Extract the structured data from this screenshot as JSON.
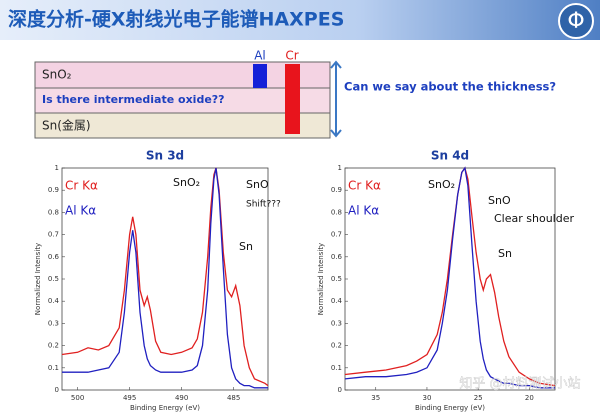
{
  "header": {
    "title": "深度分析-硬X射线光电子能谱HAXPES",
    "logo": "Φ"
  },
  "diagram": {
    "layers": [
      "SnO₂",
      "Is there intermediate oxide??",
      "Sn(金属)"
    ],
    "sources": [
      "Al",
      "Cr"
    ],
    "question": "Can we say about the thickness?"
  },
  "chart_data": [
    {
      "type": "line",
      "title": "Sn 3d",
      "x_label": "Binding Energy (eV)",
      "y_label": "Normalized Intensity",
      "x": [
        501.5,
        500,
        499,
        498,
        497,
        496,
        495.5,
        495,
        494.7,
        494.4,
        494,
        493.6,
        493.3,
        493,
        492.5,
        492,
        491,
        490,
        489,
        488.5,
        488,
        487.5,
        487.2,
        486.9,
        486.7,
        486.4,
        486,
        485.6,
        485.2,
        484.8,
        484.4,
        484,
        483.5,
        483,
        482,
        481.7
      ],
      "series": [
        {
          "name": "Cr Kα",
          "color": "#e02020",
          "values": [
            0.16,
            0.17,
            0.19,
            0.18,
            0.2,
            0.28,
            0.45,
            0.7,
            0.78,
            0.7,
            0.45,
            0.38,
            0.42,
            0.36,
            0.22,
            0.17,
            0.16,
            0.17,
            0.19,
            0.23,
            0.35,
            0.6,
            0.82,
            0.97,
            1,
            0.9,
            0.62,
            0.45,
            0.42,
            0.47,
            0.38,
            0.2,
            0.1,
            0.05,
            0.03,
            0.02
          ]
        },
        {
          "name": "Al Kα",
          "color": "#2020c0",
          "values": [
            0.08,
            0.08,
            0.08,
            0.09,
            0.1,
            0.17,
            0.35,
            0.62,
            0.72,
            0.62,
            0.35,
            0.2,
            0.14,
            0.11,
            0.09,
            0.08,
            0.08,
            0.08,
            0.09,
            0.11,
            0.2,
            0.45,
            0.75,
            0.95,
            1,
            0.88,
            0.55,
            0.25,
            0.1,
            0.05,
            0.03,
            0.02,
            0.02,
            0.01,
            0.01,
            0.01
          ]
        }
      ],
      "xlim": [
        501.5,
        481.7
      ],
      "xticks": [
        500,
        495,
        490,
        485
      ],
      "ylim": [
        0,
        1
      ],
      "yticks": [
        0,
        0.1,
        0.2,
        0.3,
        0.4,
        0.5,
        0.6,
        0.7,
        0.8,
        0.9,
        1
      ],
      "annotations": [
        "SnO₂",
        "SnO",
        "Shift???",
        "Sn"
      ]
    },
    {
      "type": "line",
      "title": "Sn 4d",
      "x_label": "Binding Energy (eV)",
      "y_label": "Normalized Intensity",
      "x": [
        38,
        36,
        34,
        32,
        31,
        30,
        29,
        28.5,
        28,
        27.5,
        27,
        26.6,
        26.3,
        26,
        25.6,
        25.2,
        24.8,
        24.5,
        24.2,
        23.8,
        23.4,
        23,
        22.5,
        22,
        21,
        20,
        19,
        17.5
      ],
      "series": [
        {
          "name": "Cr Kα",
          "color": "#e02020",
          "values": [
            0.07,
            0.08,
            0.09,
            0.11,
            0.13,
            0.16,
            0.25,
            0.35,
            0.5,
            0.7,
            0.88,
            0.98,
            1,
            0.95,
            0.78,
            0.62,
            0.5,
            0.45,
            0.5,
            0.52,
            0.44,
            0.33,
            0.22,
            0.15,
            0.08,
            0.05,
            0.03,
            0.02
          ]
        },
        {
          "name": "Al Kα",
          "color": "#2020c0",
          "values": [
            0.05,
            0.06,
            0.06,
            0.07,
            0.08,
            0.1,
            0.18,
            0.3,
            0.45,
            0.68,
            0.88,
            0.98,
            1,
            0.92,
            0.65,
            0.4,
            0.22,
            0.14,
            0.09,
            0.06,
            0.05,
            0.04,
            0.03,
            0.03,
            0.02,
            0.02,
            0.01,
            0.01
          ]
        }
      ],
      "xlim": [
        38,
        17.5
      ],
      "xticks": [
        35,
        30,
        25,
        20
      ],
      "ylim": [
        0,
        1
      ],
      "yticks": [
        0,
        0.1,
        0.2,
        0.3,
        0.4,
        0.5,
        0.6,
        0.7,
        0.8,
        0.9,
        1
      ],
      "annotations": [
        "SnO₂",
        "SnO",
        "Clear shoulder",
        "Sn"
      ]
    }
  ],
  "watermark": "知乎 @材料测试小站"
}
